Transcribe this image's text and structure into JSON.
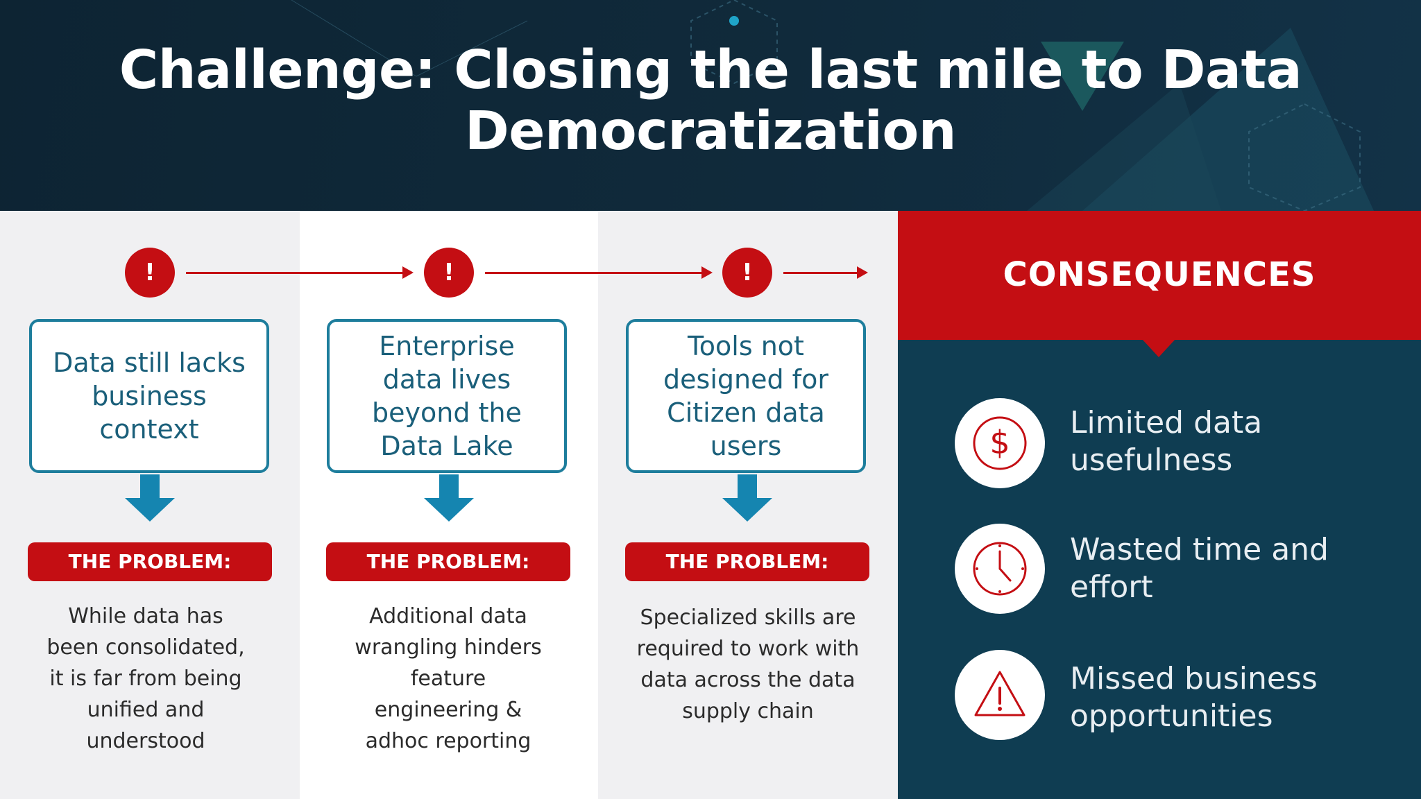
{
  "header": {
    "title_line1": "Challenge: Closing the last mile to Data",
    "title_line2": "Democratization"
  },
  "steps": [
    {
      "alert_icon": "!",
      "box_lines": [
        "Data still lacks",
        "business",
        "context"
      ],
      "problem_label": "THE PROBLEM:",
      "desc_lines": [
        "While data has",
        "been consolidated,",
        "it is far from being",
        "unified and",
        "understood"
      ]
    },
    {
      "alert_icon": "!",
      "box_lines": [
        "Enterprise",
        "data lives",
        "beyond the",
        "Data Lake"
      ],
      "problem_label": "THE PROBLEM:",
      "desc_lines": [
        "Additional data",
        "wrangling hinders",
        "feature",
        "engineering &",
        "adhoc reporting"
      ]
    },
    {
      "alert_icon": "!",
      "box_lines": [
        "Tools not",
        "designed for",
        "Citizen data",
        "users"
      ],
      "problem_label": "THE PROBLEM:",
      "desc_lines": [
        "Specialized skills are",
        "required to work with",
        "data across the data",
        "supply chain"
      ]
    }
  ],
  "consequences": {
    "title": "CONSEQUENCES",
    "items": [
      {
        "icon": "dollar-icon",
        "lines": [
          "Limited data",
          "usefulness"
        ]
      },
      {
        "icon": "clock-icon",
        "lines": [
          "Wasted time and",
          "effort"
        ]
      },
      {
        "icon": "warning-icon",
        "lines": [
          "Missed business",
          "opportunities"
        ]
      }
    ]
  },
  "colors": {
    "accent_red": "#c40e13",
    "teal": "#1d7d9c",
    "navy": "#0f3d52"
  }
}
